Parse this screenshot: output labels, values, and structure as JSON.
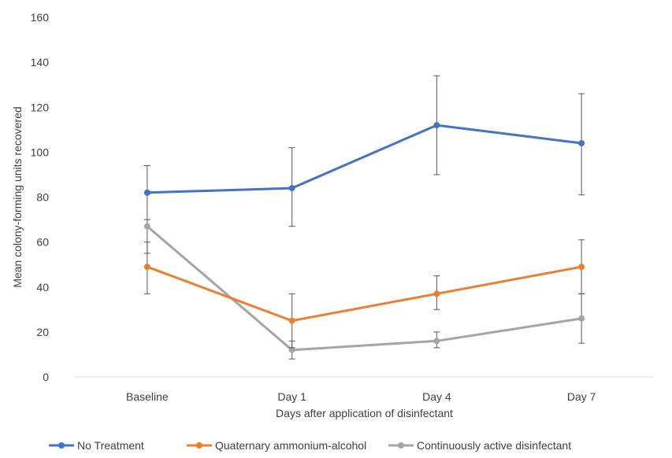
{
  "chart_data": {
    "type": "line",
    "title": "",
    "xlabel": "Days after application of disinfectant",
    "ylabel": "Mean colony-forming units recovered",
    "categories": [
      "Baseline",
      "Day 1",
      "Day 4",
      "Day 7"
    ],
    "ylim": [
      0,
      160
    ],
    "yticks": [
      0,
      20,
      40,
      60,
      80,
      100,
      120,
      140,
      160
    ],
    "grid": false,
    "legend_position": "bottom",
    "series": [
      {
        "name": "No Treatment",
        "color": "#4472C4",
        "values": [
          82,
          84,
          112,
          104
        ],
        "error": [
          [
            70,
            94
          ],
          [
            67,
            102
          ],
          [
            90,
            134
          ],
          [
            81,
            126
          ]
        ]
      },
      {
        "name": "Quaternary ammonium-alcohol",
        "color": "#ED7D31",
        "values": [
          49,
          25,
          37,
          49
        ],
        "error": [
          [
            37,
            60
          ],
          [
            13,
            37
          ],
          [
            30,
            45
          ],
          [
            37,
            61
          ]
        ]
      },
      {
        "name": "Continuously active disinfectant",
        "color": "#A5A5A5",
        "values": [
          67,
          12,
          16,
          26
        ],
        "error": [
          [
            55,
            70
          ],
          [
            8,
            16
          ],
          [
            13,
            20
          ],
          [
            15,
            37
          ]
        ]
      }
    ]
  }
}
